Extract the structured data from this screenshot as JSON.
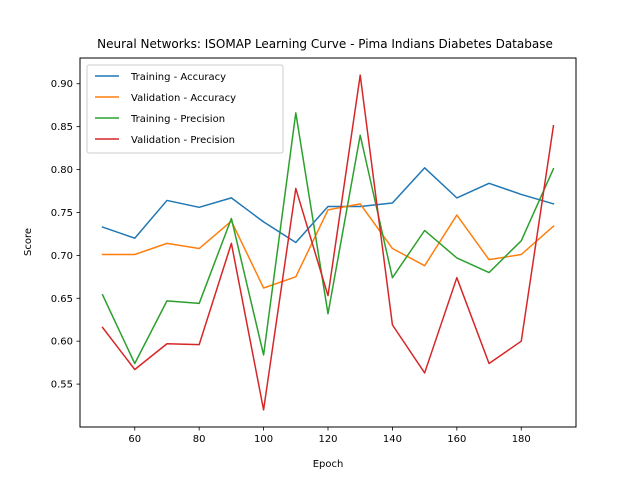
{
  "chart_data": {
    "type": "line",
    "title": "Neural Networks: ISOMAP Learning Curve - Pima Indians Diabetes Database",
    "xlabel": "Epoch",
    "ylabel": "Score",
    "xlim": [
      43,
      197
    ],
    "ylim": [
      0.5,
      0.93
    ],
    "xticks": [
      60,
      80,
      100,
      120,
      140,
      160,
      180
    ],
    "yticks": [
      0.55,
      0.6,
      0.65,
      0.7,
      0.75,
      0.8,
      0.85,
      0.9
    ],
    "ytick_labels": [
      "0.55",
      "0.60",
      "0.65",
      "0.70",
      "0.75",
      "0.80",
      "0.85",
      "0.90"
    ],
    "grid": false,
    "legend_position": "top-left",
    "x": [
      50,
      60,
      70,
      80,
      90,
      100,
      110,
      120,
      130,
      140,
      150,
      160,
      170,
      180,
      190
    ],
    "series": [
      {
        "name": "Training - Accuracy",
        "color": "#1f77b4",
        "values": [
          0.733,
          0.72,
          0.764,
          0.756,
          0.767,
          0.739,
          0.715,
          0.757,
          0.757,
          0.761,
          0.802,
          0.767,
          0.784,
          0.771,
          0.76
        ]
      },
      {
        "name": "Validation - Accuracy",
        "color": "#ff7f0e",
        "values": [
          0.701,
          0.701,
          0.714,
          0.708,
          0.74,
          0.662,
          0.675,
          0.753,
          0.76,
          0.708,
          0.688,
          0.747,
          0.695,
          0.701,
          0.734
        ]
      },
      {
        "name": "Training - Precision",
        "color": "#2ca02c",
        "values": [
          0.654,
          0.574,
          0.647,
          0.644,
          0.743,
          0.584,
          0.866,
          0.632,
          0.84,
          0.674,
          0.729,
          0.697,
          0.68,
          0.717,
          0.801
        ]
      },
      {
        "name": "Validation - Precision",
        "color": "#d62728",
        "values": [
          0.616,
          0.567,
          0.597,
          0.596,
          0.714,
          0.52,
          0.778,
          0.653,
          0.91,
          0.619,
          0.563,
          0.674,
          0.574,
          0.6,
          0.851
        ]
      }
    ]
  }
}
